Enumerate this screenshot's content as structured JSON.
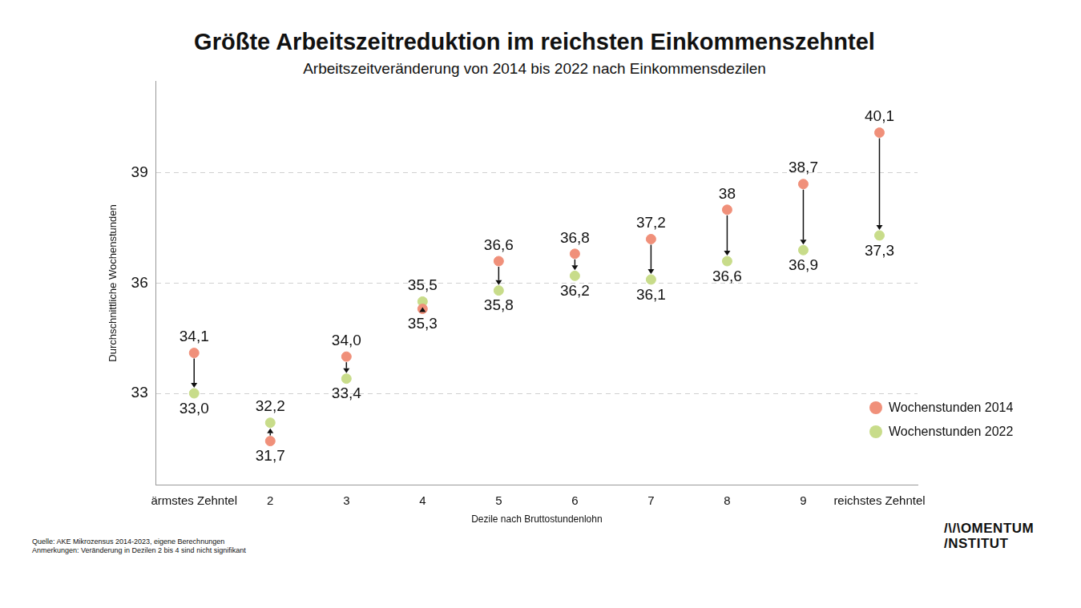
{
  "chart_data": {
    "type": "dumbbell",
    "title": "Größte Arbeitszeitreduktion im reichsten Einkommenszehntel",
    "subtitle": "Arbeitszeitveränderung von 2014 bis 2022 nach Einkommensdezilen",
    "x_label": "Dezile nach Bruttostundenlohn",
    "y_label": "Durchschnittliche Wochenstunden",
    "categories": [
      "ärmstes Zehntel",
      "2",
      "3",
      "4",
      "5",
      "6",
      "7",
      "8",
      "9",
      "reichstes Zehntel"
    ],
    "series": [
      {
        "name": "Wochenstunden 2014",
        "color": "#f0907a",
        "values": [
          34.1,
          31.7,
          34.0,
          35.3,
          36.6,
          36.8,
          37.2,
          38,
          38.7,
          40.1
        ],
        "value_labels": [
          "34,1",
          "31,7",
          "34,0",
          "35,3",
          "36,6",
          "36,8",
          "37,2",
          "38",
          "38,7",
          "40,1"
        ]
      },
      {
        "name": "Wochenstunden 2022",
        "color": "#c8dc8a",
        "values": [
          33.0,
          32.2,
          33.4,
          35.5,
          35.8,
          36.2,
          36.1,
          36.6,
          36.9,
          37.3
        ],
        "value_labels": [
          "33,0",
          "32,2",
          "33,4",
          "35,5",
          "35,8",
          "36,2",
          "36,1",
          "36,6",
          "36,9",
          "37,3"
        ]
      }
    ],
    "ylim": [
      30.5,
      41.5
    ],
    "yticks": [
      33,
      36,
      39
    ],
    "grid": true,
    "legend": "right",
    "data_labels": true,
    "source": "Quelle: AKE Mikrozensus 2014-2023, eigene Berechnungen",
    "note": "Anmerkungen: Veränderung in Dezilen 2 bis 4 sind nicht signifikant",
    "logo": [
      "/\\/\\OMENTUM",
      "/NSTITUT"
    ]
  }
}
